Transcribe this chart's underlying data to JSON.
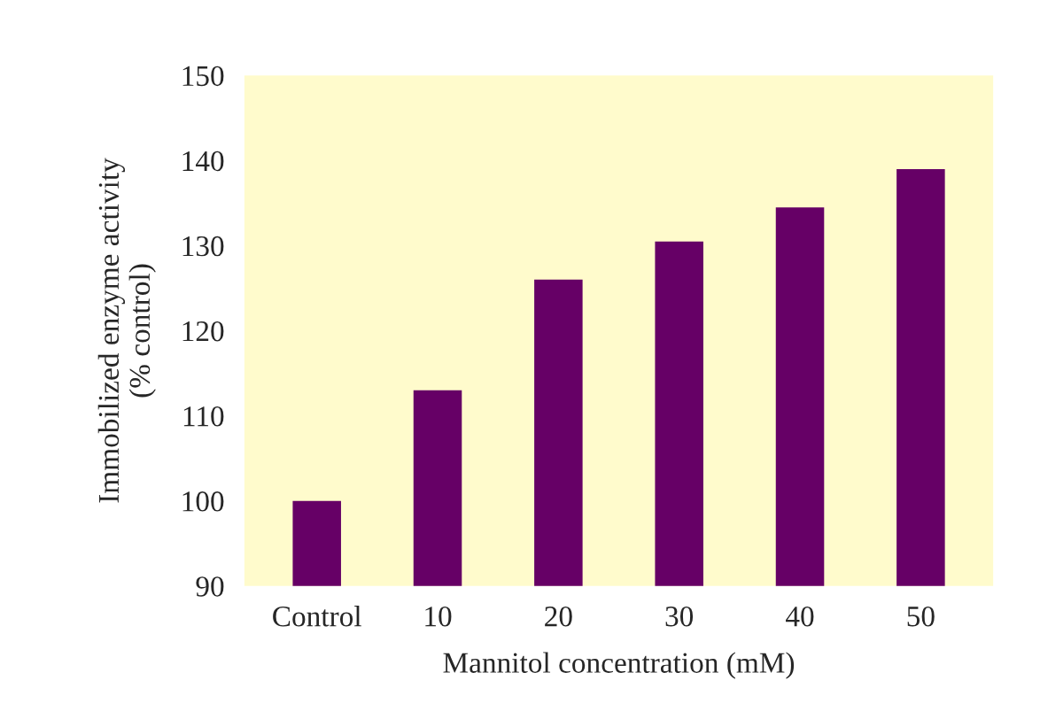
{
  "chart_data": {
    "type": "bar",
    "xlabel": "Mannitol concentration (mM)",
    "ylabel": "Immobilized enzyme activity\n(% control)",
    "categories": [
      "Control",
      "10",
      "20",
      "30",
      "40",
      "50"
    ],
    "values": [
      100,
      113,
      126,
      130.5,
      134.5,
      139
    ],
    "color": "#660066",
    "ylim": [
      90,
      150
    ],
    "yticks": [
      90,
      100,
      110,
      120,
      130,
      140,
      150
    ],
    "grid": false,
    "legend": false
  }
}
